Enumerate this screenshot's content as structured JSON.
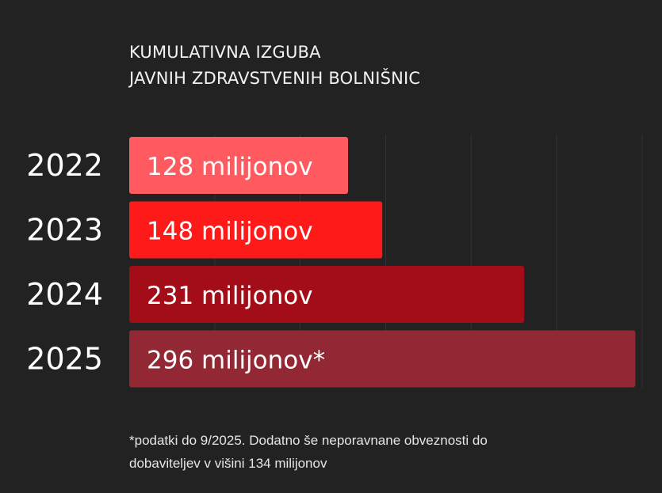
{
  "title": {
    "line1": "KUMULATIVNA IZGUBA",
    "line2": "JAVNIH ZDRAVSTVENIH BOLNIŠNIC"
  },
  "footnote": {
    "line1": "*podatki do 9/2025. Dodatno še neporavnane obveznosti do",
    "line2": "dobaviteljev v višini 134 milijonov"
  },
  "chart_data": {
    "type": "bar",
    "orientation": "horizontal",
    "categories": [
      "2022",
      "2023",
      "2024",
      "2025"
    ],
    "values": [
      128,
      148,
      231,
      296
    ],
    "data_labels": [
      "128 milijonov",
      "148 milijonov",
      "231 milijonov",
      "296 milijonov*"
    ],
    "colors": [
      "#ff5a5f",
      "#ff1a1a",
      "#a30d18",
      "#922833"
    ],
    "xlim": [
      0,
      300
    ],
    "grid": true
  }
}
